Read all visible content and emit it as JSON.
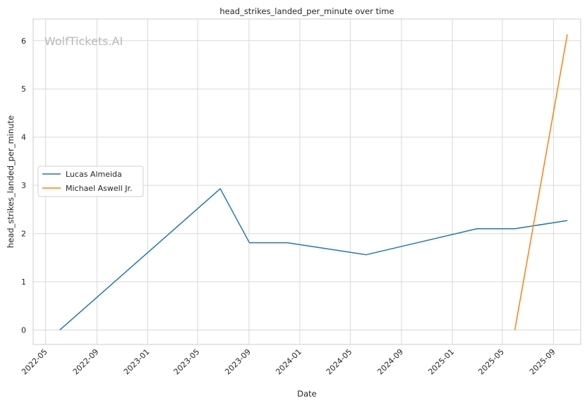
{
  "chart_data": {
    "type": "line",
    "title": "head_strikes_landed_per_minute over time",
    "xlabel": "Date",
    "ylabel": "head_strikes_landed_per_minute",
    "watermark": "WolfTickets.AI",
    "x_ticks": [
      "2022-05",
      "2022-09",
      "2023-01",
      "2023-05",
      "2023-09",
      "2024-01",
      "2024-05",
      "2024-09",
      "2025-01",
      "2025-05",
      "2025-09"
    ],
    "y_ticks": [
      "0",
      "1",
      "2",
      "3",
      "4",
      "5",
      "6"
    ],
    "xlim": [
      "2022-04-01",
      "2025-11-05"
    ],
    "ylim": [
      -0.3,
      6.45
    ],
    "grid": true,
    "legend_position": "center-left",
    "series": [
      {
        "name": "Lucas Almeida",
        "color": "#1f77b4",
        "points": [
          {
            "x": "2022-06-04",
            "y": 0
          },
          {
            "x": "2023-06-24",
            "y": 2.93
          },
          {
            "x": "2023-09-02",
            "y": 1.81
          },
          {
            "x": "2023-12-02",
            "y": 1.81
          },
          {
            "x": "2024-06-08",
            "y": 1.56
          },
          {
            "x": "2025-03-01",
            "y": 2.1
          },
          {
            "x": "2025-05-31",
            "y": 2.1
          },
          {
            "x": "2025-10-04",
            "y": 2.27
          }
        ]
      },
      {
        "name": "Michael Aswell Jr.",
        "color": "#ff7f0e",
        "points": [
          {
            "x": "2025-05-31",
            "y": 0
          },
          {
            "x": "2025-10-04",
            "y": 6.13
          }
        ]
      }
    ]
  }
}
